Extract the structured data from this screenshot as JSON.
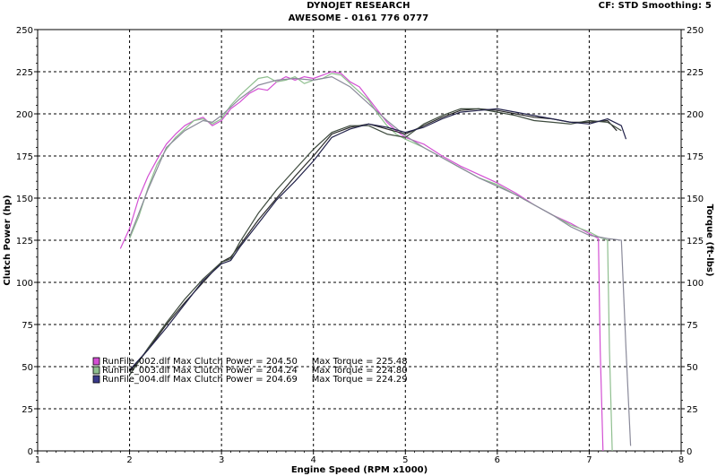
{
  "header": {
    "title": "DYNOJET RESEARCH",
    "subtitle": "AWESOME - 0161 776 0777",
    "settings": "CF: STD   Smoothing: 5"
  },
  "chart_data": {
    "type": "line",
    "xlabel": "Engine Speed (RPM x1000)",
    "ylabel_left": "Clutch Power (hp)",
    "ylabel_right": "Torque (ft-lbs)",
    "xlim": [
      1,
      8
    ],
    "ylim": [
      0,
      250
    ],
    "x_ticks": [
      "1",
      "2",
      "3",
      "4",
      "5",
      "6",
      "7",
      "8"
    ],
    "y_ticks": [
      "0",
      "25",
      "50",
      "75",
      "100",
      "125",
      "150",
      "175",
      "200",
      "225",
      "250"
    ],
    "grid": true,
    "legend": [
      {
        "label": "RunFile_002.dlf Max Clutch Power = 204.50     Max Torque = 225.48",
        "color": "#d34fd3"
      },
      {
        "label": "RunFile_003.dlf Max Clutch Power = 204.24     Max Torque = 224.80",
        "color": "#8fbf8f"
      },
      {
        "label": "RunFile_004.dlf Max Clutch Power = 204.69     Max Torque = 224.29",
        "color": "#3a3a8a"
      }
    ],
    "series": [
      {
        "name": "RunFile_002.dlf",
        "kind": "torque",
        "color": "#d34fd3",
        "x": [
          1.9,
          2.0,
          2.1,
          2.2,
          2.3,
          2.4,
          2.5,
          2.6,
          2.7,
          2.8,
          2.9,
          3.0,
          3.1,
          3.2,
          3.3,
          3.4,
          3.5,
          3.6,
          3.7,
          3.8,
          3.9,
          4.0,
          4.1,
          4.2,
          4.3,
          4.4,
          4.5,
          4.6,
          4.7,
          4.8,
          4.9,
          5.0,
          5.2,
          5.4,
          5.6,
          5.8,
          6.0,
          6.2,
          6.4,
          6.6,
          6.8,
          7.0,
          7.1,
          7.12,
          7.15
        ],
        "y": [
          120,
          132,
          150,
          163,
          173,
          182,
          188,
          193,
          196,
          198,
          193,
          196,
          203,
          207,
          212,
          215,
          214,
          219,
          222,
          220,
          222,
          221,
          223,
          225,
          224,
          219,
          216,
          209,
          202,
          195,
          190,
          186,
          182,
          175,
          169,
          164,
          159,
          153,
          146,
          140,
          135,
          129,
          126,
          60,
          0
        ]
      },
      {
        "name": "RunFile_003.dlf",
        "kind": "torque",
        "color": "#8fbf8f",
        "x": [
          2.0,
          2.1,
          2.2,
          2.3,
          2.4,
          2.5,
          2.6,
          2.7,
          2.8,
          2.9,
          3.0,
          3.1,
          3.2,
          3.3,
          3.4,
          3.5,
          3.6,
          3.7,
          3.8,
          3.9,
          4.0,
          4.1,
          4.2,
          4.3,
          4.4,
          4.5,
          4.6,
          4.7,
          4.8,
          4.9,
          5.0,
          5.2,
          5.4,
          5.6,
          5.8,
          6.0,
          6.2,
          6.4,
          6.6,
          6.8,
          7.0,
          7.1,
          7.2,
          7.22,
          7.25
        ],
        "y": [
          126,
          139,
          156,
          170,
          179,
          186,
          191,
          196,
          197,
          194,
          197,
          205,
          211,
          216,
          221,
          222,
          219,
          220,
          222,
          218,
          220,
          221,
          224,
          223,
          218,
          213,
          208,
          200,
          193,
          188,
          185,
          180,
          174,
          168,
          162,
          158,
          152,
          146,
          140,
          134,
          130,
          127,
          125,
          60,
          0
        ]
      },
      {
        "name": "RunFile_004.dlf",
        "kind": "torque",
        "color": "#8a8a9a",
        "x": [
          2.0,
          2.2,
          2.4,
          2.6,
          2.8,
          2.9,
          3.0,
          3.2,
          3.4,
          3.6,
          3.8,
          4.0,
          4.2,
          4.4,
          4.6,
          4.8,
          5.0,
          5.2,
          5.4,
          5.6,
          5.8,
          6.0,
          6.2,
          6.4,
          6.6,
          6.8,
          7.0,
          7.2,
          7.35,
          7.4,
          7.45
        ],
        "y": [
          127,
          155,
          180,
          190,
          196,
          195,
          199,
          209,
          217,
          220,
          221,
          220,
          222,
          216,
          206,
          196,
          187,
          180,
          174,
          168,
          162,
          157,
          152,
          146,
          140,
          133,
          128,
          126,
          125,
          60,
          3
        ]
      },
      {
        "name": "RunFile_002.dlf",
        "kind": "power",
        "color": "#2a2a2a",
        "x": [
          2.0,
          2.2,
          2.4,
          2.6,
          2.8,
          3.0,
          3.1,
          3.2,
          3.4,
          3.6,
          3.8,
          4.0,
          4.2,
          4.4,
          4.6,
          4.8,
          5.0,
          5.2,
          5.4,
          5.6,
          5.8,
          6.0,
          6.2,
          6.4,
          6.6,
          6.8,
          7.0,
          7.2,
          7.3
        ],
        "y": [
          47,
          60,
          75,
          88,
          100,
          112,
          115,
          122,
          137,
          150,
          163,
          175,
          188,
          192,
          194,
          191,
          188,
          193,
          198,
          202,
          203,
          202,
          200,
          198,
          197,
          195,
          195,
          196,
          190
        ]
      },
      {
        "name": "RunFile_003.dlf",
        "kind": "power",
        "color": "#3d4a3d",
        "x": [
          2.0,
          2.2,
          2.4,
          2.6,
          2.8,
          3.0,
          3.1,
          3.2,
          3.4,
          3.6,
          3.8,
          4.0,
          4.2,
          4.4,
          4.6,
          4.8,
          5.0,
          5.2,
          5.4,
          5.6,
          5.8,
          6.0,
          6.2,
          6.4,
          6.6,
          6.8,
          7.0,
          7.2,
          7.35
        ],
        "y": [
          45,
          61,
          76,
          90,
          102,
          112,
          114,
          124,
          141,
          155,
          167,
          179,
          189,
          193,
          193,
          188,
          186,
          194,
          199,
          203,
          203,
          201,
          199,
          196,
          195,
          194,
          196,
          195,
          190
        ]
      },
      {
        "name": "RunFile_004.dlf",
        "kind": "power",
        "color": "#22224a",
        "x": [
          2.0,
          2.2,
          2.4,
          2.6,
          2.8,
          3.0,
          3.1,
          3.2,
          3.4,
          3.6,
          3.8,
          4.0,
          4.2,
          4.4,
          4.6,
          4.8,
          5.0,
          5.2,
          5.4,
          5.6,
          5.8,
          6.0,
          6.2,
          6.4,
          6.6,
          6.8,
          7.0,
          7.2,
          7.35,
          7.4
        ],
        "y": [
          48,
          60,
          73,
          87,
          101,
          111,
          113,
          121,
          135,
          149,
          160,
          172,
          186,
          191,
          194,
          192,
          189,
          192,
          197,
          201,
          202,
          203,
          201,
          199,
          197,
          195,
          194,
          197,
          193,
          185
        ]
      }
    ]
  }
}
